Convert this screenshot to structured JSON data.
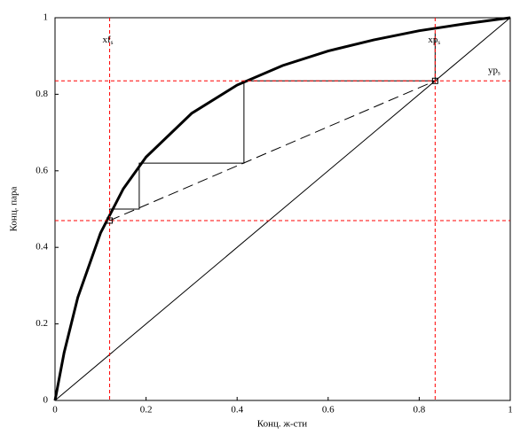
{
  "chart_data": {
    "type": "line",
    "xlabel": "Конц. ж-сти",
    "ylabel": "Конц. пара",
    "xlim": [
      0,
      1
    ],
    "ylim": [
      0,
      1
    ],
    "xticks": [
      0,
      0.2,
      0.4,
      0.6,
      0.8,
      1
    ],
    "yticks": [
      0,
      0.2,
      0.4,
      0.6,
      0.8,
      1
    ],
    "series": [
      {
        "color": "#000000",
        "width": 3,
        "dash": "none",
        "x": [
          0,
          0.02,
          0.05,
          0.1,
          0.15,
          0.2,
          0.3,
          0.4,
          0.5,
          0.6,
          0.7,
          0.8,
          0.9,
          1
        ],
        "values": [
          0,
          0.125,
          0.269,
          0.4375,
          0.553,
          0.636,
          0.75,
          0.824,
          0.875,
          0.913,
          0.942,
          0.966,
          0.984,
          1
        ]
      },
      {
        "color": "#000000",
        "width": 1,
        "dash": "none",
        "x": [
          0,
          1
        ],
        "values": [
          0,
          1
        ]
      },
      {
        "color": "#000000",
        "width": 1,
        "dash": "12,6",
        "x": [
          0.12,
          0.835
        ],
        "values": [
          0.47,
          0.835
        ]
      },
      {
        "color": "#000000",
        "width": 1,
        "dash": "none",
        "x": [
          0.835,
          0.835,
          0.415,
          0.415,
          0.185,
          0.185,
          0.12,
          0.12
        ],
        "values": [
          0.96,
          0.835,
          0.835,
          0.62,
          0.62,
          0.5,
          0.5,
          0.47
        ]
      }
    ],
    "ref_color": "#ff0000",
    "vlines": [
      {
        "value": 0.12,
        "label": "xf",
        "sub": "s"
      },
      {
        "value": 0.835,
        "label": "xp",
        "sub": "s"
      }
    ],
    "hlines": [
      {
        "value": 0.835,
        "label": "yp",
        "sub": "s"
      },
      {
        "value": 0.47
      }
    ],
    "points": {
      "x": [
        0.12,
        0.835
      ],
      "values": [
        0.47,
        0.835
      ]
    }
  }
}
